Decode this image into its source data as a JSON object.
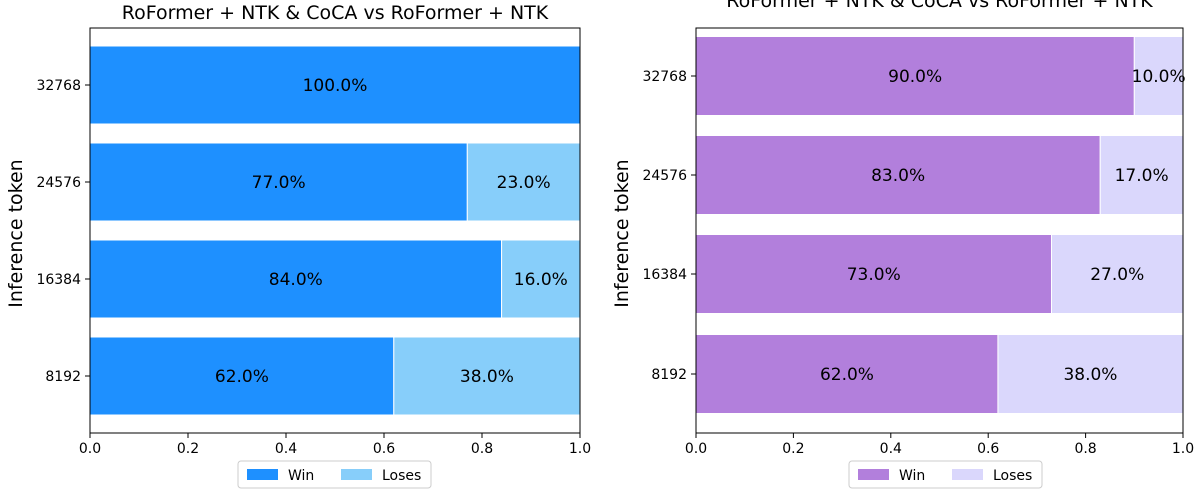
{
  "chart_data": [
    {
      "type": "bar",
      "orientation": "horizontal",
      "stacked": true,
      "title": "RoFormer + NTK & CoCA  vs  RoFormer + NTK",
      "ylabel": "Inference token",
      "xlabel": "",
      "categories": [
        "8192",
        "16384",
        "24576",
        "32768"
      ],
      "xlim": [
        0,
        1.0
      ],
      "xticks": [
        "0.0",
        "0.2",
        "0.4",
        "0.6",
        "0.8",
        "1.0"
      ],
      "series": [
        {
          "name": "Win",
          "values": [
            0.62,
            0.84,
            0.77,
            1.0
          ],
          "labels": [
            "62.0%",
            "84.0%",
            "77.0%",
            "100.0%"
          ],
          "color": "#1e90ff"
        },
        {
          "name": "Loses",
          "values": [
            0.38,
            0.16,
            0.23,
            0.0
          ],
          "labels": [
            "38.0%",
            "16.0%",
            "23.0%",
            ""
          ],
          "color": "#87cefa"
        }
      ],
      "legend": "bottom-center",
      "grid": false
    },
    {
      "type": "bar",
      "orientation": "horizontal",
      "stacked": true,
      "title": "RoFormer + NTK & CoCA  vs  RoFormer + NTK",
      "ylabel": "Inference token",
      "xlabel": "",
      "categories": [
        "8192",
        "16384",
        "24576",
        "32768"
      ],
      "xlim": [
        0,
        1.0
      ],
      "xticks": [
        "0.0",
        "0.2",
        "0.4",
        "0.6",
        "0.8",
        "1.0"
      ],
      "series": [
        {
          "name": "Win",
          "values": [
            0.62,
            0.73,
            0.83,
            0.9
          ],
          "labels": [
            "62.0%",
            "73.0%",
            "83.0%",
            "90.0%"
          ],
          "color": "#b27fdc"
        },
        {
          "name": "Loses",
          "values": [
            0.38,
            0.27,
            0.17,
            0.1
          ],
          "labels": [
            "38.0%",
            "27.0%",
            "17.0%",
            "10.0%"
          ],
          "color": "#dad7fc"
        }
      ],
      "legend": "bottom-center",
      "grid": false
    }
  ]
}
